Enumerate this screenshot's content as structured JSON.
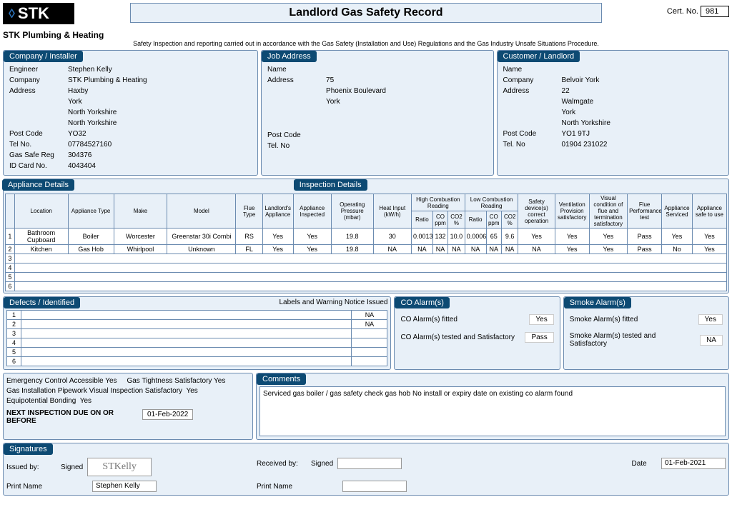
{
  "header": {
    "logo_text": "STK",
    "company_under_logo": "STK Plumbing & Heating",
    "title": "Landlord Gas Safety Record",
    "cert_no_label": "Cert. No.",
    "cert_no": "981",
    "subtitle": "Safety Inspection and reporting carried out in accordance with the Gas Safety (Installation and Use) Regulations and the Gas Industry Unsafe Situations Procedure."
  },
  "company": {
    "section": "Company / Installer",
    "engineer_l": "Engineer",
    "engineer": "Stephen Kelly",
    "company_l": "Company",
    "company": "STK Plumbing & Heating",
    "address_l": "Address",
    "addr1": "Haxby",
    "addr2": "York",
    "addr3": "North Yorkshire",
    "addr4": "North Yorkshire",
    "postcode_l": "Post Code",
    "postcode": "YO32",
    "tel_l": "Tel No.",
    "tel": "07784527160",
    "gassafe_l": "Gas Safe Reg",
    "gassafe": "304376",
    "idcard_l": "ID Card No.",
    "idcard": "4043404"
  },
  "job": {
    "section": "Job Address",
    "name_l": "Name",
    "name": "",
    "address_l": "Address",
    "addr1": "75",
    "addr2": "Phoenix Boulevard",
    "addr3": "York",
    "postcode_l": "Post Code",
    "postcode": "",
    "tel_l": "Tel. No",
    "tel": ""
  },
  "customer": {
    "section": "Customer / Landlord",
    "name_l": "Name",
    "name": "",
    "company_l": "Company",
    "company": "Belvoir York",
    "address_l": "Address",
    "addr1": "22",
    "addr2": "Walmgate",
    "addr3": "York",
    "addr4": "North Yorkshire",
    "postcode_l": "Post Code",
    "postcode": "YO1 9TJ",
    "tel_l": "Tel. No",
    "tel": "01904 231022"
  },
  "appl": {
    "section_left": "Appliance Details",
    "section_right": "Inspection Details",
    "headers": {
      "location": "Location",
      "type": "Appliance Type",
      "make": "Make",
      "model": "Model",
      "flue": "Flue Type",
      "landlords": "Landlord's Appliance",
      "inspected": "Appliance Inspected",
      "op": "Operating Pressure (mbar)",
      "heat": "Heat Input (kW/h)",
      "high": "High Combustion Reading",
      "high_r": "Ratio",
      "high_co": "CO ppm",
      "high_co2": "CO2 %",
      "low": "Low Combustion Reading",
      "low_r": "Ratio",
      "low_co": "CO ppm",
      "low_co2": "CO2 %",
      "safety": "Safety device(s) correct operation",
      "vent": "Ventilation Provision satisfactory",
      "visual": "Visual condition of flue and termination satisfactory",
      "flueperf": "Flue Performance test",
      "serviced": "Appliance Serviced",
      "safe": "Appliance safe to use"
    },
    "rows": [
      {
        "n": "1",
        "location": "Bathroom Cupboard",
        "type": "Boiler",
        "make": "Worcester",
        "model": "Greenstar 30i Combi",
        "flue": "RS",
        "landlords": "Yes",
        "inspected": "Yes",
        "op": "19.8",
        "heat": "30",
        "hr": "0.0013",
        "hco": "132",
        "hco2": "10.0",
        "lr": "0.0006",
        "lco": "65",
        "lco2": "9.6",
        "safety": "Yes",
        "vent": "Yes",
        "visual": "Yes",
        "flueperf": "Pass",
        "serviced": "Yes",
        "safe": "Yes"
      },
      {
        "n": "2",
        "location": "Kitchen",
        "type": "Gas Hob",
        "make": "Whirlpool",
        "model": "Unknown",
        "flue": "FL",
        "landlords": "Yes",
        "inspected": "Yes",
        "op": "19.8",
        "heat": "NA",
        "hr": "NA",
        "hco": "NA",
        "hco2": "NA",
        "lr": "NA",
        "lco": "NA",
        "lco2": "NA",
        "safety": "NA",
        "vent": "Yes",
        "visual": "Yes",
        "flueperf": "Pass",
        "serviced": "No",
        "safe": "Yes"
      },
      {
        "n": "3"
      },
      {
        "n": "4"
      },
      {
        "n": "5"
      },
      {
        "n": "6"
      }
    ]
  },
  "defects": {
    "section": "Defects / Identified",
    "labels_header": "Labels and Warning Notice Issued",
    "rows": [
      {
        "n": "1",
        "text": "",
        "label": "NA"
      },
      {
        "n": "2",
        "text": "",
        "label": "NA"
      },
      {
        "n": "3",
        "text": "",
        "label": ""
      },
      {
        "n": "4",
        "text": "",
        "label": ""
      },
      {
        "n": "5",
        "text": "",
        "label": ""
      },
      {
        "n": "6",
        "text": "",
        "label": ""
      }
    ]
  },
  "co_alarms": {
    "section": "CO Alarm(s)",
    "fitted_l": "CO Alarm(s) fitted",
    "fitted": "Yes",
    "tested_l": "CO Alarm(s) tested and Satisfactory",
    "tested": "Pass"
  },
  "smoke_alarms": {
    "section": "Smoke Alarm(s)",
    "fitted_l": "Smoke Alarm(s) fitted",
    "fitted": "Yes",
    "tested_l": "Smoke Alarm(s) tested and Satisfactory",
    "tested": "NA"
  },
  "checks": {
    "emergency": "Emergency Control Accessible",
    "emergency_v": "Yes",
    "tightness": "Gas Tightness Satisfactory",
    "tightness_v": "Yes",
    "pipework": "Gas Installation Pipework Visual Inspection Satisfactory",
    "pipework_v": "Yes",
    "bonding": "Equipotential Bonding",
    "bonding_v": "Yes",
    "next_l": "NEXT INSPECTION DUE ON OR BEFORE",
    "next": "01-Feb-2022"
  },
  "comments": {
    "section": "Comments",
    "text": "Serviced gas boiler / gas safety check gas hob No install or expiry date on existing co alarm found"
  },
  "sig": {
    "section": "Signatures",
    "issued_l": "Issued by:",
    "signed_l": "Signed",
    "print_l": "Print Name",
    "issued_print": "Stephen Kelly",
    "recv_l": "Received by:",
    "date_l": "Date",
    "date": "01-Feb-2021",
    "sig_scribble": "STKelly"
  },
  "colors": {
    "section_bg": "#0d4a73",
    "panel_bg": "#e8f0f8",
    "border": "#6b8bb0"
  }
}
